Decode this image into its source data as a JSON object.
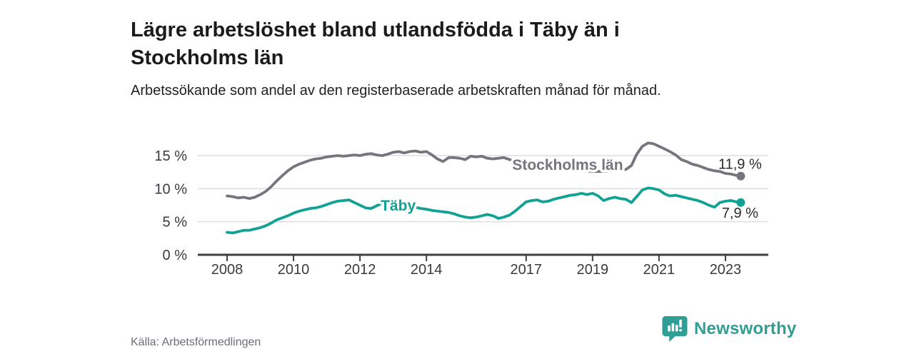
{
  "footer": {
    "source": "Källa: Arbetsförmedlingen",
    "brand": "Newsworthy"
  },
  "colors": {
    "taby_line": "#12a294",
    "stockholm_line": "#75757e",
    "brand_teal": "#2f9e94",
    "grid": "#dedee2",
    "axis": "#3f3f46"
  },
  "chart_data": {
    "type": "line",
    "title": "Lägre arbetslöshet bland utlandsfödda i Täby än i Stockholms län",
    "subtitle": "Arbetssökande som andel av den registerbaserade arbetskraften månad för månad.",
    "xlabel": "",
    "ylabel": "",
    "x_domain": [
      2008,
      2023.46
    ],
    "ylim": [
      0,
      17.5
    ],
    "grid": "horizontal",
    "legend_position": "inline-labels",
    "y_ticks": [
      {
        "value": 0,
        "label": "0 %"
      },
      {
        "value": 5,
        "label": "5 %"
      },
      {
        "value": 10,
        "label": "10 %"
      },
      {
        "value": 15,
        "label": "15 %"
      }
    ],
    "x_ticks": [
      {
        "value": 2008,
        "label": "2008"
      },
      {
        "value": 2010,
        "label": "2010"
      },
      {
        "value": 2012,
        "label": "2012"
      },
      {
        "value": 2014,
        "label": "2014"
      },
      {
        "value": 2017,
        "label": "2017"
      },
      {
        "value": 2019,
        "label": "2019"
      },
      {
        "value": 2021,
        "label": "2021"
      },
      {
        "value": 2023,
        "label": "2023"
      }
    ],
    "series": [
      {
        "name": "Stockholms län",
        "color": "#75757e",
        "end_label": "11,9 %",
        "end_label_position": "above",
        "label_anchor": {
          "x": 2018.25,
          "y": 13.6
        },
        "points": [
          [
            2008.0,
            8.9
          ],
          [
            2008.17,
            8.8
          ],
          [
            2008.33,
            8.6
          ],
          [
            2008.5,
            8.7
          ],
          [
            2008.67,
            8.5
          ],
          [
            2008.83,
            8.7
          ],
          [
            2009.0,
            9.1
          ],
          [
            2009.17,
            9.6
          ],
          [
            2009.33,
            10.3
          ],
          [
            2009.5,
            11.2
          ],
          [
            2009.67,
            12.0
          ],
          [
            2009.83,
            12.7
          ],
          [
            2010.0,
            13.3
          ],
          [
            2010.17,
            13.7
          ],
          [
            2010.33,
            14.0
          ],
          [
            2010.5,
            14.3
          ],
          [
            2010.67,
            14.5
          ],
          [
            2010.83,
            14.6
          ],
          [
            2011.0,
            14.8
          ],
          [
            2011.17,
            14.9
          ],
          [
            2011.33,
            15.0
          ],
          [
            2011.5,
            14.9
          ],
          [
            2011.67,
            15.0
          ],
          [
            2011.83,
            15.1
          ],
          [
            2012.0,
            15.0
          ],
          [
            2012.17,
            15.2
          ],
          [
            2012.33,
            15.3
          ],
          [
            2012.5,
            15.1
          ],
          [
            2012.67,
            15.0
          ],
          [
            2012.83,
            15.2
          ],
          [
            2013.0,
            15.5
          ],
          [
            2013.17,
            15.6
          ],
          [
            2013.33,
            15.4
          ],
          [
            2013.5,
            15.6
          ],
          [
            2013.67,
            15.7
          ],
          [
            2013.83,
            15.5
          ],
          [
            2014.0,
            15.6
          ],
          [
            2014.17,
            15.1
          ],
          [
            2014.33,
            14.5
          ],
          [
            2014.5,
            14.1
          ],
          [
            2014.67,
            14.7
          ],
          [
            2014.83,
            14.7
          ],
          [
            2015.0,
            14.6
          ],
          [
            2015.17,
            14.4
          ],
          [
            2015.33,
            14.9
          ],
          [
            2015.5,
            14.8
          ],
          [
            2015.67,
            14.9
          ],
          [
            2015.83,
            14.6
          ],
          [
            2016.0,
            14.5
          ],
          [
            2016.17,
            14.6
          ],
          [
            2016.33,
            14.7
          ],
          [
            2016.5,
            14.4
          ],
          [
            2016.75,
            14.1
          ],
          [
            2017.0,
            13.8
          ],
          [
            2017.25,
            13.5
          ],
          [
            2017.5,
            13.3
          ],
          [
            2017.75,
            13.1
          ],
          [
            2018.0,
            13.0
          ],
          [
            2018.25,
            12.9
          ],
          [
            2018.5,
            12.8
          ],
          [
            2018.75,
            12.7
          ],
          [
            2019.0,
            12.6
          ],
          [
            2019.25,
            12.6
          ],
          [
            2019.5,
            12.7
          ],
          [
            2019.75,
            12.8
          ],
          [
            2020.0,
            12.9
          ],
          [
            2020.17,
            13.5
          ],
          [
            2020.33,
            15.2
          ],
          [
            2020.5,
            16.4
          ],
          [
            2020.67,
            16.9
          ],
          [
            2020.83,
            16.8
          ],
          [
            2021.0,
            16.4
          ],
          [
            2021.17,
            16.0
          ],
          [
            2021.33,
            15.6
          ],
          [
            2021.5,
            15.1
          ],
          [
            2021.67,
            14.4
          ],
          [
            2021.83,
            14.1
          ],
          [
            2022.0,
            13.7
          ],
          [
            2022.17,
            13.5
          ],
          [
            2022.33,
            13.2
          ],
          [
            2022.5,
            12.9
          ],
          [
            2022.67,
            12.7
          ],
          [
            2022.83,
            12.6
          ],
          [
            2023.0,
            12.3
          ],
          [
            2023.17,
            12.2
          ],
          [
            2023.33,
            12.0
          ],
          [
            2023.46,
            11.9
          ]
        ]
      },
      {
        "name": "Täby",
        "color": "#12a294",
        "end_label": "7,9 %",
        "end_label_position": "below",
        "label_anchor": {
          "x": 2013.15,
          "y": 7.45
        },
        "points": [
          [
            2008.0,
            3.4
          ],
          [
            2008.17,
            3.3
          ],
          [
            2008.33,
            3.5
          ],
          [
            2008.5,
            3.7
          ],
          [
            2008.67,
            3.7
          ],
          [
            2008.83,
            3.9
          ],
          [
            2009.0,
            4.1
          ],
          [
            2009.17,
            4.4
          ],
          [
            2009.33,
            4.8
          ],
          [
            2009.5,
            5.3
          ],
          [
            2009.67,
            5.6
          ],
          [
            2009.83,
            5.9
          ],
          [
            2010.0,
            6.3
          ],
          [
            2010.17,
            6.6
          ],
          [
            2010.33,
            6.8
          ],
          [
            2010.5,
            7.0
          ],
          [
            2010.67,
            7.1
          ],
          [
            2010.83,
            7.3
          ],
          [
            2011.0,
            7.6
          ],
          [
            2011.17,
            7.9
          ],
          [
            2011.33,
            8.1
          ],
          [
            2011.5,
            8.2
          ],
          [
            2011.67,
            8.3
          ],
          [
            2011.83,
            7.9
          ],
          [
            2012.0,
            7.5
          ],
          [
            2012.17,
            7.1
          ],
          [
            2012.33,
            7.0
          ],
          [
            2012.5,
            7.4
          ],
          [
            2012.67,
            7.8
          ],
          [
            2012.83,
            7.8
          ],
          [
            2013.0,
            7.7
          ],
          [
            2013.17,
            7.6
          ],
          [
            2013.33,
            7.5
          ],
          [
            2013.5,
            7.5
          ],
          [
            2013.67,
            7.2
          ],
          [
            2013.83,
            7.0
          ],
          [
            2014.0,
            6.9
          ],
          [
            2014.17,
            6.7
          ],
          [
            2014.33,
            6.6
          ],
          [
            2014.5,
            6.5
          ],
          [
            2014.67,
            6.4
          ],
          [
            2014.83,
            6.2
          ],
          [
            2015.0,
            5.9
          ],
          [
            2015.17,
            5.7
          ],
          [
            2015.33,
            5.6
          ],
          [
            2015.5,
            5.7
          ],
          [
            2015.67,
            5.9
          ],
          [
            2015.83,
            6.1
          ],
          [
            2016.0,
            5.9
          ],
          [
            2016.17,
            5.5
          ],
          [
            2016.33,
            5.7
          ],
          [
            2016.5,
            6.0
          ],
          [
            2016.67,
            6.6
          ],
          [
            2016.83,
            7.3
          ],
          [
            2017.0,
            8.0
          ],
          [
            2017.17,
            8.2
          ],
          [
            2017.33,
            8.3
          ],
          [
            2017.5,
            8.0
          ],
          [
            2017.67,
            8.1
          ],
          [
            2017.83,
            8.4
          ],
          [
            2018.0,
            8.6
          ],
          [
            2018.17,
            8.8
          ],
          [
            2018.33,
            9.0
          ],
          [
            2018.5,
            9.1
          ],
          [
            2018.67,
            9.3
          ],
          [
            2018.83,
            9.1
          ],
          [
            2019.0,
            9.3
          ],
          [
            2019.17,
            8.9
          ],
          [
            2019.33,
            8.2
          ],
          [
            2019.5,
            8.5
          ],
          [
            2019.67,
            8.7
          ],
          [
            2019.83,
            8.5
          ],
          [
            2020.0,
            8.4
          ],
          [
            2020.17,
            7.9
          ],
          [
            2020.33,
            8.8
          ],
          [
            2020.5,
            9.8
          ],
          [
            2020.67,
            10.1
          ],
          [
            2020.83,
            10.0
          ],
          [
            2021.0,
            9.8
          ],
          [
            2021.17,
            9.2
          ],
          [
            2021.33,
            8.9
          ],
          [
            2021.5,
            9.0
          ],
          [
            2021.67,
            8.8
          ],
          [
            2021.83,
            8.6
          ],
          [
            2022.0,
            8.4
          ],
          [
            2022.17,
            8.2
          ],
          [
            2022.33,
            7.9
          ],
          [
            2022.5,
            7.5
          ],
          [
            2022.67,
            7.2
          ],
          [
            2022.83,
            7.9
          ],
          [
            2023.0,
            8.1
          ],
          [
            2023.17,
            8.2
          ],
          [
            2023.33,
            8.0
          ],
          [
            2023.46,
            7.9
          ]
        ]
      }
    ]
  }
}
